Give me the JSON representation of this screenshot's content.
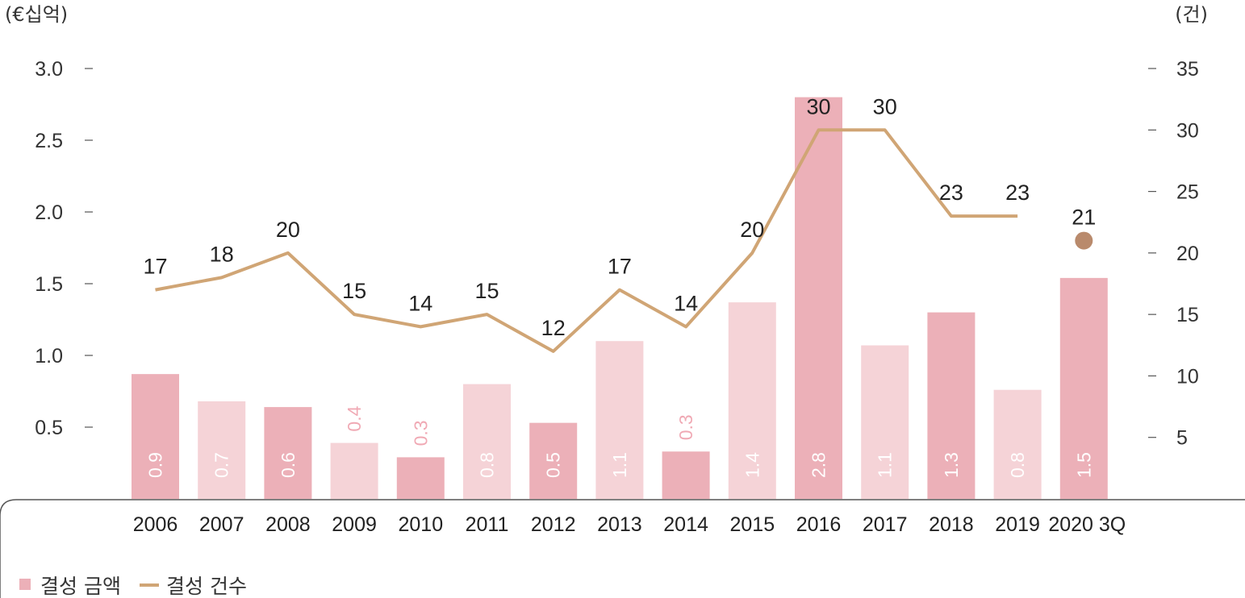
{
  "chart_data": {
    "type": "bar",
    "categories": [
      "2006",
      "2007",
      "2008",
      "2009",
      "2010",
      "2011",
      "2012",
      "2013",
      "2014",
      "2015",
      "2016",
      "2017",
      "2018",
      "2019",
      "2020 3Q"
    ],
    "left_axis": {
      "unit_label": "(€십억)",
      "ticks": [
        "3.0",
        "2.5",
        "2.0",
        "1.5",
        "1.0",
        "0.5"
      ],
      "ylim": [
        0,
        3.0
      ]
    },
    "right_axis": {
      "unit_label": "(건)",
      "ticks": [
        "35",
        "30",
        "25",
        "20",
        "15",
        "10",
        "5"
      ],
      "ylim": [
        0,
        35
      ]
    },
    "series": [
      {
        "name": "결성 금액",
        "type": "bar",
        "values": [
          0.87,
          0.68,
          0.64,
          0.39,
          0.29,
          0.8,
          0.53,
          1.1,
          0.33,
          1.37,
          2.8,
          1.07,
          1.3,
          0.76,
          1.54
        ],
        "labels": [
          "0.9",
          "0.7",
          "0.6",
          "0.4",
          "0.3",
          "0.8",
          "0.5",
          "1.1",
          "0.3",
          "1.4",
          "2.8",
          "1.1",
          "1.3",
          "0.8",
          "1.5"
        ],
        "colors": [
          "#ecb0b8",
          "#f5d3d7",
          "#ecb0b8",
          "#f5d3d7",
          "#ecb0b8",
          "#f5d3d7",
          "#ecb0b8",
          "#f5d3d7",
          "#ecb0b8",
          "#f5d3d7",
          "#ecb0b8",
          "#f5d3d7",
          "#ecb0b8",
          "#f5d3d7",
          "#ecb0b8"
        ]
      },
      {
        "name": "결성 건수",
        "type": "line",
        "values": [
          17,
          18,
          20,
          15,
          14,
          15,
          12,
          17,
          14,
          20,
          30,
          30,
          23,
          23,
          21
        ],
        "labels": [
          "17",
          "18",
          "20",
          "15",
          "14",
          "15",
          "12",
          "17",
          "14",
          "20",
          "30",
          "30",
          "23",
          "23",
          "21"
        ],
        "separate_last_point": true,
        "color": "#d0a575",
        "dot_color": "#b98a6c"
      }
    ],
    "legend": {
      "placement": "bottom-left"
    }
  }
}
